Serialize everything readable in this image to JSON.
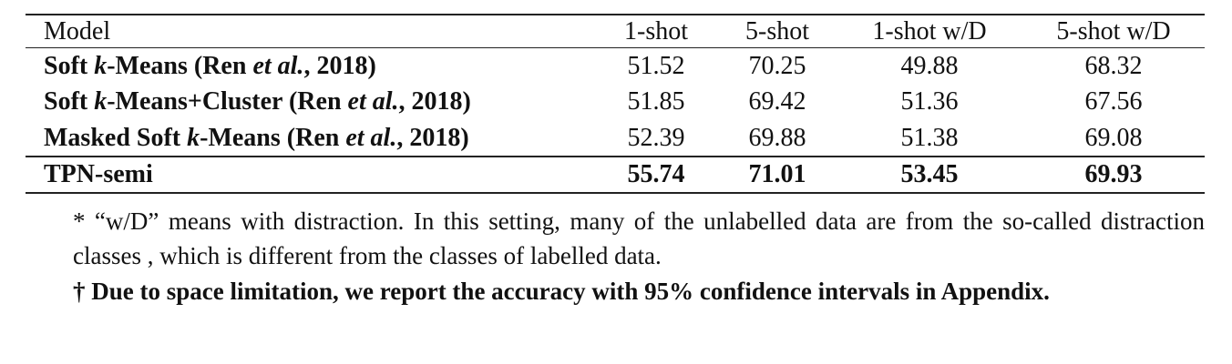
{
  "table": {
    "header": [
      "Model",
      "1-shot",
      "5-shot",
      "1-shot w/D",
      "5-shot w/D"
    ],
    "rows": [
      {
        "model": [
          "Soft ",
          "k",
          "-Means (Ren ",
          "et al.",
          ", 2018)"
        ],
        "values": [
          51.52,
          70.25,
          49.88,
          68.32
        ]
      },
      {
        "model": [
          "Soft ",
          "k",
          "-Means+Cluster (Ren ",
          "et al.",
          ", 2018)"
        ],
        "values": [
          51.85,
          69.42,
          51.36,
          67.56
        ]
      },
      {
        "model": [
          "Masked Soft ",
          "k",
          "-Means (Ren ",
          "et al.",
          ", 2018)"
        ],
        "values": [
          52.39,
          69.88,
          51.38,
          69.08
        ]
      },
      {
        "model": [
          "TPN-semi"
        ],
        "values": [
          55.74,
          71.01,
          53.45,
          69.93
        ]
      }
    ]
  },
  "footnotes": [
    "* “w/D” means with distraction. In this setting, many of the unlabelled data are from the so-called distraction classes , which is different from the classes of labelled data.",
    "† Due to space limitation, we report the accuracy with 95% confidence intervals in Appendix."
  ]
}
